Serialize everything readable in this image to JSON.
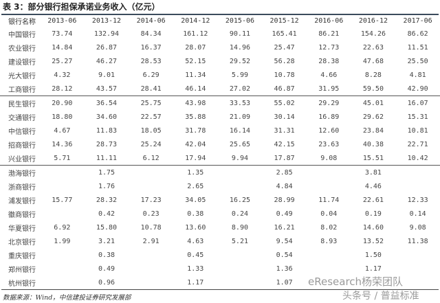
{
  "title": "表 3：部分银行担保承诺业务收入（亿元）",
  "headers": [
    "银行名称",
    "2013-06",
    "2013-12",
    "2014-06",
    "2014-12",
    "2015-06",
    "2015-12",
    "2016-06",
    "2016-12",
    "2017-06"
  ],
  "rows": [
    {
      "name": "中国银行",
      "values": [
        "73.74",
        "132.94",
        "84.34",
        "161.12",
        "90.11",
        "165.41",
        "86.21",
        "154.26",
        "86.62"
      ]
    },
    {
      "name": "农业银行",
      "values": [
        "14.84",
        "26.87",
        "16.37",
        "28.07",
        "14.96",
        "25.47",
        "12.73",
        "22.63",
        "11.51"
      ]
    },
    {
      "name": "建设银行",
      "values": [
        "25.27",
        "46.27",
        "28.53",
        "52.15",
        "29.52",
        "56.28",
        "28.38",
        "47.68",
        "25.50"
      ]
    },
    {
      "name": "光大银行",
      "values": [
        "4.32",
        "9.01",
        "6.29",
        "11.34",
        "5.99",
        "10.78",
        "4.66",
        "8.28",
        "4.81"
      ]
    },
    {
      "name": "工商银行",
      "values": [
        "28.12",
        "43.57",
        "28.41",
        "46.14",
        "27.02",
        "46.87",
        "31.95",
        "59.50",
        "42.90"
      ]
    },
    {
      "name": "民生银行",
      "values": [
        "20.90",
        "36.54",
        "25.75",
        "43.98",
        "33.53",
        "55.02",
        "29.29",
        "45.01",
        "16.07"
      ]
    },
    {
      "name": "交通银行",
      "values": [
        "18.80",
        "34.60",
        "22.57",
        "35.88",
        "21.09",
        "30.14",
        "16.89",
        "29.62",
        "15.31"
      ]
    },
    {
      "name": "中信银行",
      "values": [
        "4.67",
        "11.83",
        "18.05",
        "31.78",
        "16.14",
        "31.31",
        "12.60",
        "23.84",
        "10.81"
      ]
    },
    {
      "name": "招商银行",
      "values": [
        "14.36",
        "28.73",
        "25.24",
        "42.04",
        "25.65",
        "42.15",
        "23.63",
        "40.38",
        "22.71"
      ]
    },
    {
      "name": "兴业银行",
      "values": [
        "5.71",
        "11.11",
        "6.12",
        "17.94",
        "9.94",
        "17.87",
        "9.08",
        "15.51",
        "10.42"
      ]
    },
    {
      "name": "渤海银行",
      "values": [
        "",
        "1.75",
        "",
        "1.35",
        "",
        "2.85",
        "",
        "3.81",
        ""
      ]
    },
    {
      "name": "浙商银行",
      "values": [
        "",
        "1.76",
        "",
        "2.65",
        "",
        "4.84",
        "",
        "4.46",
        ""
      ]
    },
    {
      "name": "浦发银行",
      "values": [
        "15.77",
        "28.32",
        "17.23",
        "34.05",
        "16.25",
        "28.99",
        "11.74",
        "22.61",
        "12.33"
      ]
    },
    {
      "name": "徽商银行",
      "values": [
        "",
        "0.42",
        "0.23",
        "0.38",
        "0.24",
        "0.49",
        "0.04",
        "0.19",
        "0.14"
      ]
    },
    {
      "name": "华夏银行",
      "values": [
        "6.92",
        "15.80",
        "10.78",
        "13.60",
        "8.90",
        "16.21",
        "8.02",
        "14.60",
        "9.08"
      ]
    },
    {
      "name": "北京银行",
      "values": [
        "1.99",
        "3.21",
        "2.91",
        "4.63",
        "5.21",
        "9.54",
        "8.93",
        "13.52",
        "11.38"
      ]
    },
    {
      "name": "重庆银行",
      "values": [
        "",
        "0.38",
        "",
        "0.45",
        "",
        "0.54",
        "",
        "1.50",
        ""
      ]
    },
    {
      "name": "郑州银行",
      "values": [
        "",
        "0.49",
        "",
        "1.33",
        "",
        "1.36",
        "",
        "1.17",
        ""
      ]
    },
    {
      "name": "杭州银行",
      "values": [
        "",
        "0.96",
        "",
        "1.17",
        "",
        "1.07",
        "",
        "",
        ""
      ]
    }
  ],
  "source": "数据来源：Wind，中信建投证券研究发展部",
  "watermark": {
    "line1": "eResearch杨荣团队",
    "line2": "头条号 / 普益标准"
  }
}
